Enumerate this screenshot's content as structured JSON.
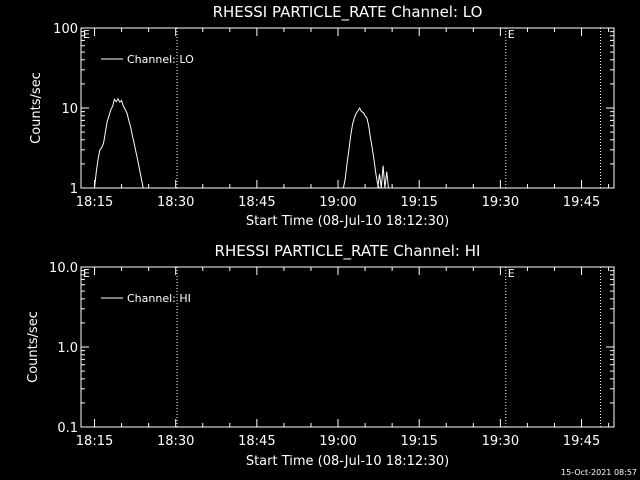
{
  "chart_data": [
    {
      "type": "line",
      "title": "RHESSI PARTICLE_RATE Channel: LO",
      "xlabel": "Start Time (08-Jul-10 18:12:30)",
      "ylabel": "Counts/sec",
      "yscale": "log",
      "ylim": [
        1,
        100
      ],
      "yticks": [
        "1",
        "10",
        "100"
      ],
      "xlim": [
        "18:12:30",
        "19:51:00"
      ],
      "xticks": [
        "18:15",
        "18:30",
        "18:45",
        "19:00",
        "19:15",
        "19:30",
        "19:45"
      ],
      "grid": false,
      "legend": {
        "position": "top-left",
        "label": "Channel: LO"
      },
      "markers": [
        {
          "label": "E",
          "time": "18:12:30"
        },
        {
          "label": "",
          "time": "18:30:15"
        },
        {
          "label": "E",
          "time": "19:31:00"
        },
        {
          "label": "",
          "time": "19:48:30"
        }
      ],
      "series": [
        {
          "name": "Channel: LO",
          "segments": [
            {
              "x": [
                "18:15:00",
                "18:15:20",
                "18:15:40",
                "18:16:00",
                "18:16:20",
                "18:16:40",
                "18:17:00",
                "18:17:20",
                "18:17:40",
                "18:18:00",
                "18:18:20",
                "18:18:40",
                "18:19:00",
                "18:19:20",
                "18:19:40",
                "18:20:00",
                "18:20:20",
                "18:20:40",
                "18:21:00",
                "18:21:20",
                "18:21:40",
                "18:22:00",
                "18:22:20",
                "18:22:40",
                "18:23:00",
                "18:23:20",
                "18:23:40",
                "18:24:00",
                "18:24:20",
                "18:24:40",
                "18:25:00"
              ],
              "y": [
                1.0,
                1.6,
                2.3,
                3.0,
                3.2,
                3.6,
                5.0,
                6.8,
                8.0,
                9.5,
                10.5,
                12.8,
                12.0,
                13.0,
                11.8,
                12.4,
                10.5,
                9.6,
                8.6,
                7.0,
                5.8,
                4.5,
                3.6,
                2.8,
                2.2,
                1.7,
                1.3,
                1.0,
                1.0,
                1.0,
                1.0
              ]
            },
            {
              "x": [
                "19:01:00",
                "19:01:20",
                "19:01:40",
                "19:02:00",
                "19:02:20",
                "19:02:40",
                "19:03:00",
                "19:03:20",
                "19:03:40",
                "19:04:00",
                "19:04:20",
                "19:04:40",
                "19:05:00",
                "19:05:20",
                "19:05:40",
                "19:06:00",
                "19:06:20",
                "19:06:40",
                "19:07:00",
                "19:07:20",
                "19:07:40",
                "19:08:00"
              ],
              "y": [
                1.0,
                1.3,
                2.0,
                3.0,
                4.5,
                6.2,
                7.5,
                8.5,
                9.2,
                10.0,
                9.0,
                8.8,
                8.0,
                7.5,
                6.0,
                4.2,
                3.1,
                2.2,
                1.5,
                1.1,
                1.0,
                1.0
              ]
            },
            {
              "x": [
                "19:07:20",
                "19:07:40",
                "19:08:00",
                "19:08:20",
                "19:08:40",
                "19:09:00",
                "19:09:20"
              ],
              "y": [
                1.0,
                1.5,
                1.0,
                1.9,
                1.0,
                1.6,
                1.0
              ]
            }
          ]
        }
      ]
    },
    {
      "type": "line",
      "title": "RHESSI PARTICLE_RATE Channel: HI",
      "xlabel": "Start Time (08-Jul-10 18:12:30)",
      "ylabel": "Counts/sec",
      "yscale": "log",
      "ylim": [
        0.1,
        10
      ],
      "yticks": [
        "0.1",
        "1.0",
        "10.0"
      ],
      "xlim": [
        "18:12:30",
        "19:51:00"
      ],
      "xticks": [
        "18:15",
        "18:30",
        "18:45",
        "19:00",
        "19:15",
        "19:30",
        "19:45"
      ],
      "grid": false,
      "legend": {
        "position": "top-left",
        "label": "Channel: HI"
      },
      "markers": [
        {
          "label": "E",
          "time": "18:12:30"
        },
        {
          "label": "",
          "time": "18:30:15"
        },
        {
          "label": "E",
          "time": "19:31:00"
        },
        {
          "label": "",
          "time": "19:48:30"
        }
      ],
      "series": [
        {
          "name": "Channel: HI",
          "segments": []
        }
      ]
    }
  ],
  "footer": {
    "timestamp": "15-Oct-2021 08:57"
  }
}
